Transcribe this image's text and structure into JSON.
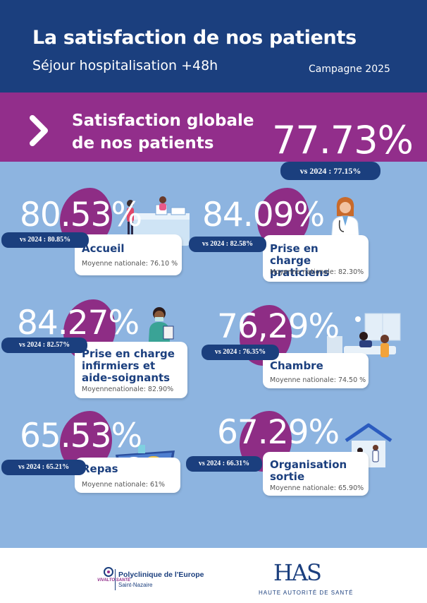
{
  "header": {
    "title": "La satisfaction de nos patients",
    "subtitle": "Séjour hospitalisation +48h",
    "campaign": "Campagne 2025"
  },
  "global": {
    "label": "Satisfaction globale de nos patients",
    "value": "77.73%",
    "vs": "vs 2024 : 77.15%"
  },
  "items": [
    {
      "value": "80.53%",
      "vs": "vs 2024 : 80.85%",
      "title": "Accueil",
      "national": "Moyenne nationale: 76.10 %"
    },
    {
      "value": "84.09%",
      "vs": "vs 2024 : 82.58%",
      "title": "Prise en charge praticiens",
      "national": "Moyenne nationale: 82.30%"
    },
    {
      "value": "84.27%",
      "vs": "vs 2024 : 82.57%",
      "title": "Prise en charge infirmiers et aide-soignants",
      "national": "Moyennenationale: 82.90%"
    },
    {
      "value": "76,29%",
      "vs": "vs 2024 : 76.35%",
      "title": "Chambre",
      "national": "Moyenne nationale: 74.50 %"
    },
    {
      "value": "65.53%",
      "vs": "vs 2024 : 65.21%",
      "title": "Repas",
      "national": "Moyenne nationale: 61%"
    },
    {
      "value": "67.29%",
      "vs": "vs 2024 : 66.31%",
      "title": "Organisation sortie",
      "national": "Moyenne nationale: 65.90%"
    }
  ],
  "footer": {
    "polyclinique": "Polyclinique de l'Europe",
    "city": "Saint-Nazaire",
    "brand": "VIVALTO SANTÉ",
    "has_logo": "HAS",
    "has_name": "HAUTE AUTORITÉ DE SANTÉ"
  },
  "colors": {
    "navy": "#1b3f7e",
    "purple": "#922e8b",
    "sky": "#8db4e0"
  }
}
